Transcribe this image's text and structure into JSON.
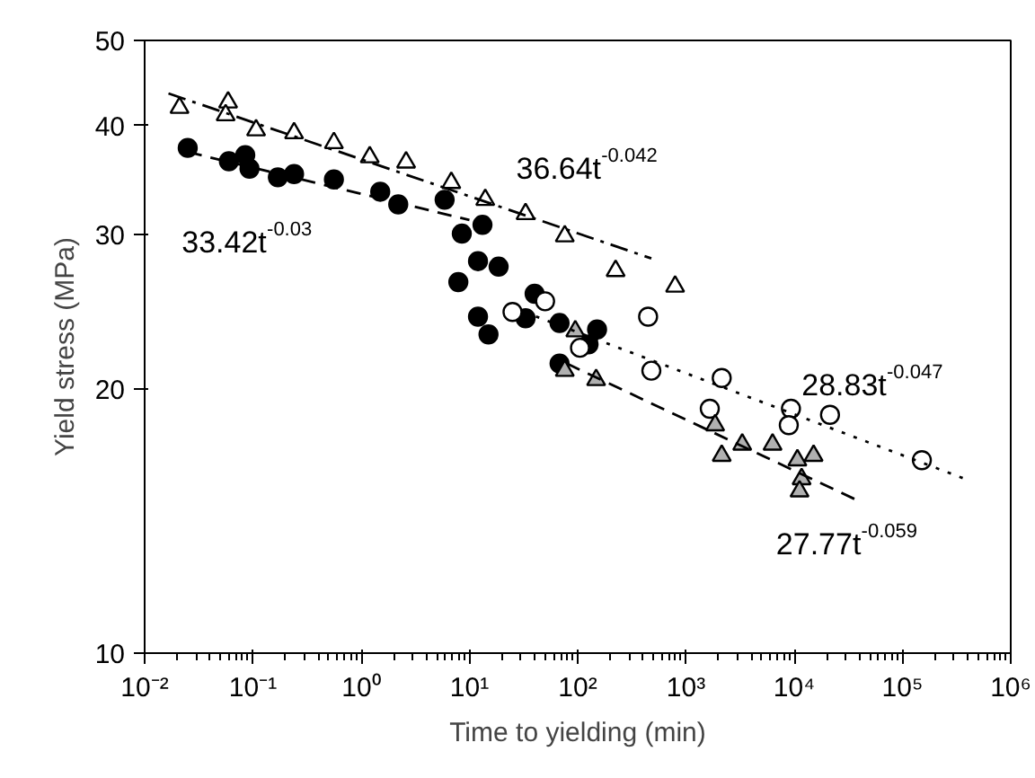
{
  "chart_data": {
    "type": "scatter",
    "xlabel": "Time to yielding (min)",
    "ylabel": "Yield stress (MPa)",
    "log": "xy",
    "grid": false,
    "xlim": [
      0.01,
      1000000
    ],
    "ylim": [
      10,
      50
    ],
    "xticks": [
      {
        "value": 0.01,
        "label": "10⁻²"
      },
      {
        "value": 0.1,
        "label": "10⁻¹"
      },
      {
        "value": 1,
        "label": "10⁰"
      },
      {
        "value": 10,
        "label": "10¹"
      },
      {
        "value": 100,
        "label": "10²"
      },
      {
        "value": 1000,
        "label": "10³"
      },
      {
        "value": 10000,
        "label": "10⁴"
      },
      {
        "value": 100000,
        "label": "10⁵"
      },
      {
        "value": 1000000,
        "label": "10⁶"
      }
    ],
    "yticks": [
      10,
      20,
      30,
      40,
      50
    ],
    "series": [
      {
        "type": "scatter",
        "marker": "triangle",
        "color": "#ffffff",
        "x": [
          0.021,
          0.059,
          0.056,
          0.107,
          0.24,
          0.56,
          1.2,
          2.6,
          6.8,
          14,
          33,
          76,
          224,
          794
        ],
        "values": [
          41.9,
          42.5,
          41.1,
          39.5,
          39.2,
          38.2,
          36.8,
          36.3,
          34.4,
          32.9,
          31.7,
          29.9,
          27.3,
          26.2
        ]
      },
      {
        "type": "scatter",
        "marker": "circle",
        "color": "#000000",
        "x": [
          0.025,
          0.06,
          0.085,
          0.093,
          0.17,
          0.24,
          0.56,
          1.5,
          2.2,
          5.9,
          8.5,
          13.2,
          12,
          18.6,
          7.9,
          12,
          15,
          40,
          33,
          68,
          151,
          126,
          68
        ],
        "values": [
          37.7,
          36.4,
          37.0,
          35.7,
          34.9,
          35.2,
          34.7,
          33.6,
          32.5,
          32.9,
          30.1,
          30.8,
          28.0,
          27.6,
          26.5,
          24.2,
          23.1,
          25.7,
          24.1,
          23.8,
          23.4,
          22.5,
          21.4
        ]
      },
      {
        "type": "scatter",
        "marker": "circle",
        "color": "#ffffff",
        "x": [
          25,
          50,
          105,
          447,
          479,
          2140,
          1660,
          9330,
          8910,
          21400,
          151000
        ],
        "values": [
          24.5,
          25.2,
          22.3,
          24.2,
          21.0,
          20.6,
          19.0,
          19.0,
          18.2,
          18.7,
          16.6
        ]
      },
      {
        "type": "scatter",
        "marker": "triangle",
        "color": "#b0b0b0",
        "x": [
          95,
          76,
          148,
          1860,
          3310,
          2140,
          6310,
          10700,
          15100,
          11700,
          11200
        ],
        "values": [
          23.3,
          21.0,
          20.5,
          18.2,
          17.3,
          16.8,
          17.3,
          16.6,
          16.8,
          15.8,
          15.3
        ]
      },
      {
        "type": "line",
        "line_style": "dashdot",
        "color": "#000000",
        "x": [
          0.0166,
          479
        ],
        "values": [
          43.5,
          28.2
        ]
      },
      {
        "type": "line",
        "line_style": "dashed",
        "color": "#000000",
        "x": [
          0.025,
          10
        ],
        "values": [
          37.3,
          31.2
        ]
      },
      {
        "type": "line",
        "line_style": "dotted",
        "color": "#000000",
        "x": [
          32,
          380000
        ],
        "values": [
          24.5,
          15.8
        ]
      },
      {
        "type": "line",
        "line_style": "dashed",
        "color": "#000000",
        "x": [
          79,
          40000
        ],
        "values": [
          21.4,
          14.9
        ]
      }
    ],
    "annotations": [
      "36.64t$^{-0.042}$",
      "33.42t$^{-0.03}$",
      "28.83t$^{-0.047}$",
      "27.77t$^{-0.059}$"
    ]
  }
}
